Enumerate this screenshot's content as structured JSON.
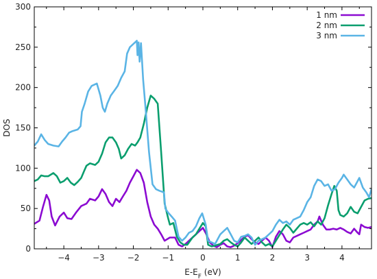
{
  "chart_data": {
    "type": "line",
    "title": "",
    "xlabel_main": "E-E",
    "xlabel_sub": "F",
    "xlabel_suffix": " (eV)",
    "ylabel": "DOS",
    "xlim": [
      -4.85,
      4.85
    ],
    "ylim": [
      0,
      300
    ],
    "x_ticks": [
      -4,
      -3,
      -2,
      -1,
      0,
      1,
      2,
      3,
      4
    ],
    "y_ticks": [
      0,
      50,
      100,
      150,
      200,
      250,
      300
    ],
    "grid": false,
    "legend_position": "top-right",
    "series": [
      {
        "name": "1 nm",
        "color": "#8b0ad1",
        "points": [
          [
            -4.85,
            31
          ],
          [
            -4.7,
            35
          ],
          [
            -4.6,
            52
          ],
          [
            -4.5,
            67
          ],
          [
            -4.42,
            60
          ],
          [
            -4.35,
            40
          ],
          [
            -4.25,
            29
          ],
          [
            -4.12,
            40
          ],
          [
            -4.0,
            45
          ],
          [
            -3.9,
            38
          ],
          [
            -3.78,
            37
          ],
          [
            -3.65,
            45
          ],
          [
            -3.5,
            53
          ],
          [
            -3.35,
            56
          ],
          [
            -3.25,
            62
          ],
          [
            -3.1,
            60
          ],
          [
            -3.0,
            65
          ],
          [
            -2.9,
            74
          ],
          [
            -2.8,
            68
          ],
          [
            -2.7,
            58
          ],
          [
            -2.6,
            53
          ],
          [
            -2.5,
            62
          ],
          [
            -2.4,
            58
          ],
          [
            -2.3,
            65
          ],
          [
            -2.2,
            72
          ],
          [
            -2.1,
            82
          ],
          [
            -2.0,
            90
          ],
          [
            -1.9,
            98
          ],
          [
            -1.8,
            94
          ],
          [
            -1.7,
            82
          ],
          [
            -1.6,
            58
          ],
          [
            -1.5,
            40
          ],
          [
            -1.4,
            30
          ],
          [
            -1.3,
            25
          ],
          [
            -1.2,
            18
          ],
          [
            -1.1,
            10
          ],
          [
            -0.95,
            14
          ],
          [
            -0.8,
            14
          ],
          [
            -0.7,
            5
          ],
          [
            -0.6,
            3
          ],
          [
            -0.5,
            6
          ],
          [
            -0.4,
            10
          ],
          [
            -0.3,
            14
          ],
          [
            -0.2,
            18
          ],
          [
            -0.1,
            22
          ],
          [
            0.0,
            26
          ],
          [
            0.1,
            18
          ],
          [
            0.2,
            8
          ],
          [
            0.3,
            4
          ],
          [
            0.4,
            2
          ],
          [
            0.5,
            5
          ],
          [
            0.6,
            7
          ],
          [
            0.7,
            3
          ],
          [
            0.8,
            2
          ],
          [
            0.9,
            4
          ],
          [
            1.0,
            7
          ],
          [
            1.1,
            11
          ],
          [
            1.2,
            15
          ],
          [
            1.3,
            17
          ],
          [
            1.4,
            12
          ],
          [
            1.5,
            8
          ],
          [
            1.6,
            6
          ],
          [
            1.7,
            10
          ],
          [
            1.8,
            14
          ],
          [
            1.9,
            10
          ],
          [
            2.0,
            2
          ],
          [
            2.1,
            15
          ],
          [
            2.2,
            22
          ],
          [
            2.3,
            18
          ],
          [
            2.4,
            10
          ],
          [
            2.5,
            8
          ],
          [
            2.6,
            14
          ],
          [
            2.7,
            16
          ],
          [
            2.8,
            18
          ],
          [
            2.9,
            20
          ],
          [
            3.0,
            22
          ],
          [
            3.1,
            24
          ],
          [
            3.2,
            30
          ],
          [
            3.3,
            34
          ],
          [
            3.35,
            40
          ],
          [
            3.45,
            30
          ],
          [
            3.55,
            24
          ],
          [
            3.65,
            24
          ],
          [
            3.75,
            25
          ],
          [
            3.85,
            24
          ],
          [
            3.95,
            26
          ],
          [
            4.05,
            24
          ],
          [
            4.15,
            21
          ],
          [
            4.25,
            19
          ],
          [
            4.35,
            25
          ],
          [
            4.45,
            20
          ],
          [
            4.5,
            18
          ],
          [
            4.55,
            30
          ],
          [
            4.65,
            27
          ],
          [
            4.75,
            26
          ],
          [
            4.85,
            27
          ]
        ]
      },
      {
        "name": "2 nm",
        "color": "#0a9e6e",
        "points": [
          [
            -4.85,
            84
          ],
          [
            -4.75,
            86
          ],
          [
            -4.65,
            91
          ],
          [
            -4.55,
            90
          ],
          [
            -4.45,
            90
          ],
          [
            -4.3,
            94
          ],
          [
            -4.2,
            90
          ],
          [
            -4.1,
            82
          ],
          [
            -4.0,
            84
          ],
          [
            -3.9,
            88
          ],
          [
            -3.8,
            82
          ],
          [
            -3.7,
            79
          ],
          [
            -3.6,
            83
          ],
          [
            -3.5,
            88
          ],
          [
            -3.42,
            96
          ],
          [
            -3.35,
            103
          ],
          [
            -3.25,
            106
          ],
          [
            -3.1,
            104
          ],
          [
            -3.0,
            108
          ],
          [
            -2.9,
            118
          ],
          [
            -2.8,
            132
          ],
          [
            -2.7,
            138
          ],
          [
            -2.6,
            138
          ],
          [
            -2.5,
            132
          ],
          [
            -2.42,
            124
          ],
          [
            -2.35,
            112
          ],
          [
            -2.25,
            116
          ],
          [
            -2.15,
            124
          ],
          [
            -2.05,
            130
          ],
          [
            -1.95,
            128
          ],
          [
            -1.88,
            132
          ],
          [
            -1.8,
            138
          ],
          [
            -1.7,
            155
          ],
          [
            -1.6,
            175
          ],
          [
            -1.5,
            190
          ],
          [
            -1.4,
            186
          ],
          [
            -1.3,
            180
          ],
          [
            -1.25,
            150
          ],
          [
            -1.2,
            120
          ],
          [
            -1.1,
            56
          ],
          [
            -1.0,
            38
          ],
          [
            -0.95,
            30
          ],
          [
            -0.85,
            32
          ],
          [
            -0.75,
            15
          ],
          [
            -0.65,
            8
          ],
          [
            -0.55,
            5
          ],
          [
            -0.45,
            5
          ],
          [
            -0.3,
            14
          ],
          [
            -0.2,
            18
          ],
          [
            -0.1,
            25
          ],
          [
            0.0,
            32
          ],
          [
            0.08,
            28
          ],
          [
            0.15,
            5
          ],
          [
            0.25,
            3
          ],
          [
            0.35,
            4
          ],
          [
            0.5,
            6
          ],
          [
            0.6,
            10
          ],
          [
            0.7,
            12
          ],
          [
            0.8,
            8
          ],
          [
            0.9,
            5
          ],
          [
            1.0,
            3
          ],
          [
            1.1,
            8
          ],
          [
            1.2,
            14
          ],
          [
            1.3,
            10
          ],
          [
            1.4,
            6
          ],
          [
            1.5,
            10
          ],
          [
            1.6,
            14
          ],
          [
            1.7,
            8
          ],
          [
            1.8,
            4
          ],
          [
            1.9,
            6
          ],
          [
            2.0,
            3
          ],
          [
            2.1,
            10
          ],
          [
            2.2,
            17
          ],
          [
            2.3,
            24
          ],
          [
            2.4,
            30
          ],
          [
            2.5,
            26
          ],
          [
            2.6,
            20
          ],
          [
            2.7,
            25
          ],
          [
            2.8,
            30
          ],
          [
            2.9,
            32
          ],
          [
            3.0,
            30
          ],
          [
            3.1,
            33
          ],
          [
            3.2,
            28
          ],
          [
            3.3,
            34
          ],
          [
            3.4,
            30
          ],
          [
            3.5,
            38
          ],
          [
            3.6,
            54
          ],
          [
            3.7,
            68
          ],
          [
            3.78,
            78
          ],
          [
            3.85,
            72
          ],
          [
            3.9,
            48
          ],
          [
            3.95,
            42
          ],
          [
            4.05,
            40
          ],
          [
            4.15,
            44
          ],
          [
            4.25,
            52
          ],
          [
            4.35,
            46
          ],
          [
            4.45,
            44
          ],
          [
            4.55,
            52
          ],
          [
            4.65,
            60
          ],
          [
            4.75,
            62
          ],
          [
            4.85,
            63
          ]
        ]
      },
      {
        "name": "3 nm",
        "color": "#5ab4e5",
        "points": [
          [
            -4.85,
            128
          ],
          [
            -4.75,
            133
          ],
          [
            -4.65,
            142
          ],
          [
            -4.55,
            135
          ],
          [
            -4.45,
            130
          ],
          [
            -4.3,
            128
          ],
          [
            -4.15,
            127
          ],
          [
            -4.05,
            133
          ],
          [
            -3.95,
            138
          ],
          [
            -3.85,
            144
          ],
          [
            -3.75,
            146
          ],
          [
            -3.6,
            148
          ],
          [
            -3.52,
            152
          ],
          [
            -3.48,
            170
          ],
          [
            -3.4,
            180
          ],
          [
            -3.3,
            195
          ],
          [
            -3.2,
            202
          ],
          [
            -3.05,
            205
          ],
          [
            -2.95,
            190
          ],
          [
            -2.88,
            175
          ],
          [
            -2.82,
            170
          ],
          [
            -2.75,
            180
          ],
          [
            -2.65,
            190
          ],
          [
            -2.55,
            196
          ],
          [
            -2.45,
            202
          ],
          [
            -2.35,
            212
          ],
          [
            -2.25,
            220
          ],
          [
            -2.18,
            242
          ],
          [
            -2.1,
            250
          ],
          [
            -2.0,
            254
          ],
          [
            -1.9,
            258
          ],
          [
            -1.88,
            240
          ],
          [
            -1.85,
            256
          ],
          [
            -1.82,
            232
          ],
          [
            -1.78,
            255
          ],
          [
            -1.72,
            210
          ],
          [
            -1.65,
            175
          ],
          [
            -1.55,
            120
          ],
          [
            -1.45,
            80
          ],
          [
            -1.35,
            74
          ],
          [
            -1.25,
            72
          ],
          [
            -1.12,
            70
          ],
          [
            -1.08,
            50
          ],
          [
            -1.0,
            45
          ],
          [
            -0.9,
            40
          ],
          [
            -0.8,
            35
          ],
          [
            -0.7,
            15
          ],
          [
            -0.6,
            10
          ],
          [
            -0.5,
            14
          ],
          [
            -0.4,
            20
          ],
          [
            -0.3,
            22
          ],
          [
            -0.2,
            28
          ],
          [
            -0.1,
            38
          ],
          [
            -0.02,
            44
          ],
          [
            0.08,
            30
          ],
          [
            0.15,
            10
          ],
          [
            0.25,
            8
          ],
          [
            0.35,
            6
          ],
          [
            0.5,
            18
          ],
          [
            0.6,
            22
          ],
          [
            0.7,
            26
          ],
          [
            0.8,
            18
          ],
          [
            0.9,
            10
          ],
          [
            1.0,
            8
          ],
          [
            1.1,
            15
          ],
          [
            1.2,
            16
          ],
          [
            1.3,
            18
          ],
          [
            1.4,
            14
          ],
          [
            1.5,
            5
          ],
          [
            1.6,
            10
          ],
          [
            1.7,
            12
          ],
          [
            1.8,
            14
          ],
          [
            1.9,
            18
          ],
          [
            2.0,
            22
          ],
          [
            2.1,
            30
          ],
          [
            2.2,
            36
          ],
          [
            2.3,
            32
          ],
          [
            2.4,
            34
          ],
          [
            2.5,
            30
          ],
          [
            2.6,
            36
          ],
          [
            2.7,
            38
          ],
          [
            2.8,
            40
          ],
          [
            2.9,
            48
          ],
          [
            3.0,
            58
          ],
          [
            3.1,
            64
          ],
          [
            3.2,
            78
          ],
          [
            3.3,
            86
          ],
          [
            3.4,
            84
          ],
          [
            3.5,
            78
          ],
          [
            3.6,
            80
          ],
          [
            3.7,
            72
          ],
          [
            3.8,
            74
          ],
          [
            3.9,
            82
          ],
          [
            4.0,
            88
          ],
          [
            4.05,
            92
          ],
          [
            4.15,
            86
          ],
          [
            4.25,
            80
          ],
          [
            4.35,
            76
          ],
          [
            4.45,
            84
          ],
          [
            4.5,
            88
          ],
          [
            4.6,
            76
          ],
          [
            4.7,
            70
          ],
          [
            4.78,
            64
          ],
          [
            4.85,
            74
          ]
        ]
      }
    ]
  }
}
